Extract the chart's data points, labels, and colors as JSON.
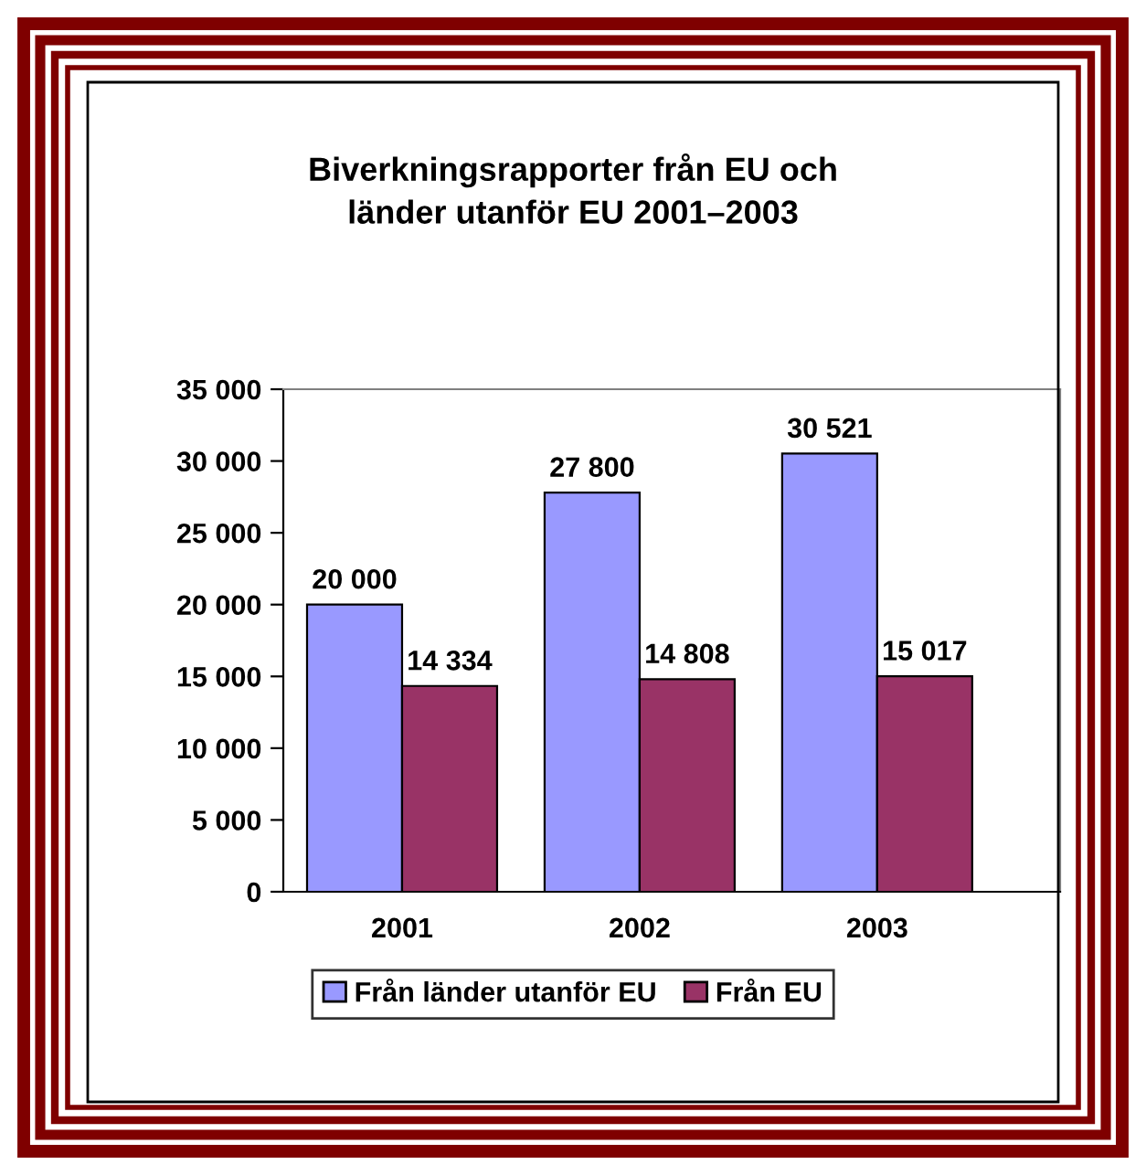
{
  "chart_data": {
    "type": "bar",
    "title": "Biverkningsrapporter från EU och\nländer utanför EU 2001–2003",
    "categories": [
      "2001",
      "2002",
      "2003"
    ],
    "series": [
      {
        "name": "Från länder utanför EU",
        "color": "#9999ff",
        "values": [
          20000,
          27800,
          30521
        ],
        "value_labels": [
          "20 000",
          "27 800",
          "30 521"
        ]
      },
      {
        "name": "Från EU",
        "color": "#993366",
        "values": [
          14334,
          14808,
          15017
        ],
        "value_labels": [
          "14 334",
          "14 808",
          "15 017"
        ]
      }
    ],
    "ylim": [
      0,
      35000
    ],
    "yticks": [
      0,
      {
        "value": 5000,
        "label": "5 000"
      },
      {
        "value": 10000,
        "label": "10 000"
      },
      {
        "value": 15000,
        "label": "15 000"
      },
      {
        "value": 20000,
        "label": "20 000"
      },
      {
        "value": 25000,
        "label": "25 000"
      },
      {
        "value": 30000,
        "label": "30 000"
      },
      {
        "value": 35000,
        "label": "35 000"
      }
    ],
    "grid": false,
    "legend": "bottom"
  }
}
